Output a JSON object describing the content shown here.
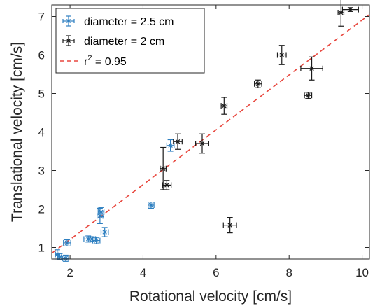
{
  "chart_data": {
    "type": "scatter",
    "title": "",
    "xlabel": "Rotational velocity [cm/s]",
    "ylabel": "Translational velocity [cm/s]",
    "xlim": [
      1.5,
      10.2
    ],
    "ylim": [
      0.7,
      7.3
    ],
    "xticks": [
      2,
      4,
      6,
      8,
      10
    ],
    "yticks": [
      1,
      2,
      3,
      4,
      5,
      6,
      7
    ],
    "grid": false,
    "legend_position": "top-left",
    "series": [
      {
        "name": "diameter = 2.5 cm",
        "color": "#2e7fc0",
        "marker": "x",
        "points": [
          {
            "x": 1.65,
            "y": 0.82,
            "xerr": 0.05,
            "yerr": 0.12
          },
          {
            "x": 1.72,
            "y": 0.76,
            "xerr": 0.05,
            "yerr": 0.08
          },
          {
            "x": 1.88,
            "y": 0.72,
            "xerr": 0.08,
            "yerr": 0.08
          },
          {
            "x": 1.92,
            "y": 1.12,
            "xerr": 0.1,
            "yerr": 0.08
          },
          {
            "x": 2.5,
            "y": 1.22,
            "xerr": 0.12,
            "yerr": 0.08
          },
          {
            "x": 2.6,
            "y": 1.22,
            "xerr": 0.1,
            "yerr": 0.06
          },
          {
            "x": 2.72,
            "y": 1.18,
            "xerr": 0.1,
            "yerr": 0.08
          },
          {
            "x": 2.82,
            "y": 1.82,
            "xerr": 0.08,
            "yerr": 0.2
          },
          {
            "x": 2.85,
            "y": 1.92,
            "xerr": 0.08,
            "yerr": 0.12
          },
          {
            "x": 2.95,
            "y": 1.4,
            "xerr": 0.1,
            "yerr": 0.12
          },
          {
            "x": 4.22,
            "y": 2.1,
            "xerr": 0.08,
            "yerr": 0.08
          },
          {
            "x": 4.75,
            "y": 3.65,
            "xerr": 0.1,
            "yerr": 0.15
          }
        ]
      },
      {
        "name": "diameter = 2 cm",
        "color": "#1a1a1a",
        "marker": "x",
        "points": [
          {
            "x": 4.55,
            "y": 3.05,
            "xerr": 0.08,
            "yerr": 0.55
          },
          {
            "x": 4.65,
            "y": 2.62,
            "xerr": 0.12,
            "yerr": 0.12
          },
          {
            "x": 4.95,
            "y": 3.75,
            "xerr": 0.12,
            "yerr": 0.2
          },
          {
            "x": 5.62,
            "y": 3.7,
            "xerr": 0.18,
            "yerr": 0.25
          },
          {
            "x": 6.22,
            "y": 4.68,
            "xerr": 0.08,
            "yerr": 0.22
          },
          {
            "x": 6.38,
            "y": 1.58,
            "xerr": 0.18,
            "yerr": 0.2
          },
          {
            "x": 7.15,
            "y": 5.25,
            "xerr": 0.1,
            "yerr": 0.1
          },
          {
            "x": 7.8,
            "y": 6.0,
            "xerr": 0.12,
            "yerr": 0.25
          },
          {
            "x": 8.52,
            "y": 4.95,
            "xerr": 0.1,
            "yerr": 0.08
          },
          {
            "x": 8.62,
            "y": 5.65,
            "xerr": 0.3,
            "yerr": 0.3
          },
          {
            "x": 9.42,
            "y": 7.1,
            "xerr": 0.08,
            "yerr": 0.35
          },
          {
            "x": 9.68,
            "y": 7.18,
            "xerr": 0.22,
            "yerr": 0.05
          }
        ]
      }
    ],
    "fit_line": {
      "name": "r² = 0.95",
      "label_prefix": "r",
      "label_sup": "2",
      "label_suffix": " = 0.95",
      "color": "#e8473e",
      "style": "dashed",
      "x": [
        1.5,
        10.2
      ],
      "y": [
        0.85,
        7.05
      ]
    }
  }
}
